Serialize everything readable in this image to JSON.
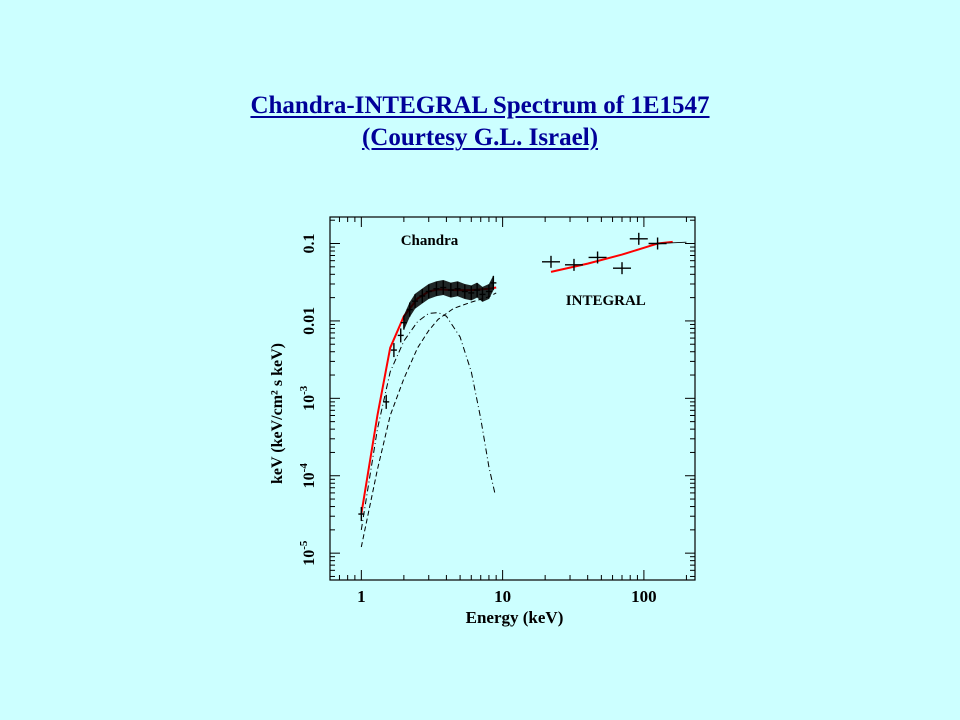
{
  "slide": {
    "title_line1": "Chandra-INTEGRAL Spectrum of 1E1547",
    "title_line2": "(Courtesy G.L. Israel)"
  },
  "colors": {
    "background": "#ccffff",
    "title": "#000099",
    "model": "#ff0000",
    "data": "#000000"
  },
  "chart_data": {
    "type": "scatter",
    "title": "",
    "xlabel": "Energy (keV)",
    "ylabel": "keV (keV/cm² s keV)",
    "xscale": "log",
    "yscale": "log",
    "xlim": [
      0.6,
      230
    ],
    "ylim": [
      4.5e-06,
      0.22
    ],
    "x_ticks": [
      {
        "value": 1,
        "label": "1"
      },
      {
        "value": 10,
        "label": "10"
      },
      {
        "value": 100,
        "label": "100"
      }
    ],
    "y_ticks": [
      {
        "value": 0.1,
        "label": "0.1",
        "base": "",
        "exp": ""
      },
      {
        "value": 0.01,
        "label": "0.01",
        "base": "",
        "exp": ""
      },
      {
        "value": 0.001,
        "label": "",
        "base": "10",
        "exp": "-3"
      },
      {
        "value": 0.0001,
        "label": "",
        "base": "10",
        "exp": "-4"
      },
      {
        "value": 1e-05,
        "label": "",
        "base": "10",
        "exp": "-5"
      }
    ],
    "annotations": [
      {
        "text": "Chandra",
        "x": 1.9,
        "y": 0.095
      },
      {
        "text": "INTEGRAL",
        "x": 28,
        "y": 0.016
      }
    ],
    "series": [
      {
        "kind": "data-points",
        "x": [
          1.0,
          1.5,
          1.7,
          1.9,
          2.0,
          2.2,
          2.4,
          2.7,
          3.0,
          3.4,
          3.8,
          4.3,
          4.8,
          5.4,
          6.0,
          6.6,
          7.2,
          8.0,
          8.6
        ],
        "y": [
          3.2e-05,
          0.0009,
          0.0042,
          0.0065,
          0.0095,
          0.014,
          0.018,
          0.021,
          0.024,
          0.026,
          0.027,
          0.025,
          0.026,
          0.024,
          0.023,
          0.025,
          0.022,
          0.024,
          0.031
        ]
      },
      {
        "kind": "data-points",
        "x": [
          22,
          32,
          47,
          70,
          92,
          125
        ],
        "y": [
          0.058,
          0.053,
          0.066,
          0.048,
          0.115,
          0.1
        ]
      },
      {
        "kind": "model",
        "x": [
          1.0,
          1.3,
          1.6,
          2.0,
          2.5,
          3.0,
          3.5,
          4.5,
          6.0,
          8.0,
          9.0,
          22,
          40,
          70,
          100,
          125,
          160
        ],
        "y": [
          3.2e-05,
          0.0006,
          0.0045,
          0.0115,
          0.0195,
          0.024,
          0.0255,
          0.025,
          0.025,
          0.026,
          0.027,
          0.043,
          0.055,
          0.072,
          0.088,
          0.1,
          0.105
        ]
      },
      {
        "kind": "component-dashed",
        "x": [
          1.0,
          1.3,
          1.6,
          2.0,
          2.5,
          3.0,
          3.5,
          4.5,
          6.0,
          8.0,
          9.0
        ],
        "y": [
          1.2e-05,
          0.00012,
          0.0006,
          0.0018,
          0.0045,
          0.0075,
          0.0105,
          0.0145,
          0.0175,
          0.0205,
          0.023
        ]
      },
      {
        "kind": "component-dashdot",
        "x": [
          1.0,
          1.3,
          1.6,
          2.0,
          2.5,
          3.0,
          3.5,
          4.0,
          5.0,
          6.0,
          7.0,
          8.0,
          8.8
        ],
        "y": [
          2e-05,
          0.0004,
          0.0022,
          0.0055,
          0.0098,
          0.0125,
          0.0128,
          0.0115,
          0.0062,
          0.0022,
          0.00055,
          0.00013,
          6e-05
        ]
      }
    ]
  }
}
